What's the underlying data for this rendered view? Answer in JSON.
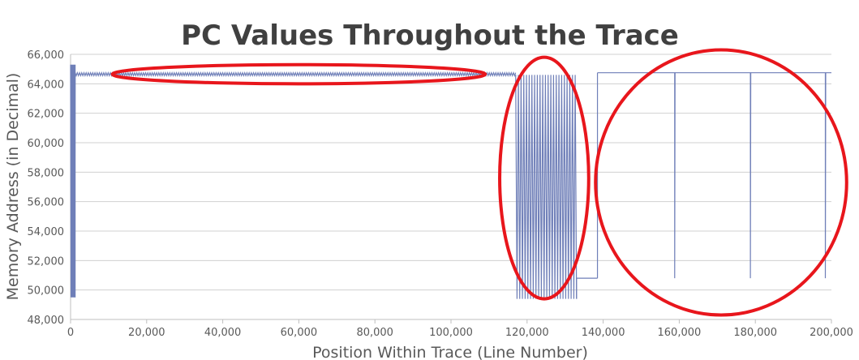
{
  "chart_data": {
    "type": "line",
    "title": "PC Values Throughout the Trace",
    "xlabel": "Position Within Trace (Line Number)",
    "ylabel": "Memory Address (in Decimal)",
    "xlim": [
      0,
      200000
    ],
    "ylim": [
      48000,
      66000
    ],
    "x_ticks": [
      0,
      20000,
      40000,
      60000,
      80000,
      100000,
      120000,
      140000,
      160000,
      180000,
      200000
    ],
    "x_tick_labels": [
      "0",
      "20,000",
      "40,000",
      "60,000",
      "80,000",
      "100,000",
      "120,000",
      "140,000",
      "160,000",
      "180,000",
      "200,000"
    ],
    "y_ticks": [
      48000,
      50000,
      52000,
      54000,
      56000,
      58000,
      60000,
      62000,
      64000,
      66000
    ],
    "y_tick_labels": [
      "48,000",
      "50,000",
      "52,000",
      "54,000",
      "56,000",
      "58,000",
      "60,000",
      "62,000",
      "64,000",
      "66,000"
    ],
    "grid": "horizontal",
    "series": [
      {
        "color": "#6f7fb8",
        "regions": [
          {
            "x_range": [
              0,
              1200
            ],
            "pattern": "oscillation",
            "low": 49500,
            "high": 65300,
            "count": 10
          },
          {
            "x_range": [
              1200,
              117000
            ],
            "pattern": "dense-band",
            "low": 64550,
            "high": 64750
          },
          {
            "x_range": [
              117000,
              133000
            ],
            "pattern": "oscillation",
            "low": 49400,
            "high": 64600,
            "count": 45
          },
          {
            "x_range": [
              133000,
              138500
            ],
            "pattern": "flat",
            "value": 50800
          },
          {
            "x_range": [
              138500,
              200000
            ],
            "pattern": "flat-with-spikes",
            "value": 64750,
            "spikes_x": [
              158800,
              178700,
              198400
            ],
            "spike_low": 50800
          }
        ]
      }
    ],
    "annotations": [
      {
        "type": "ellipse",
        "color": "#e8161c",
        "center": [
          60000,
          64650
        ],
        "radius_x": 49000,
        "radius_y": 650
      },
      {
        "type": "ellipse",
        "color": "#e8161c",
        "center": [
          124500,
          57600
        ],
        "radius_x": 11700,
        "radius_y": 8200
      },
      {
        "type": "ellipse",
        "color": "#e8161c",
        "center": [
          171000,
          57300
        ],
        "radius_x": 33000,
        "radius_y": 9000
      }
    ]
  },
  "colors": {
    "line": "#6f7fb8",
    "annotation": "#e8161c",
    "grid": "#d0d0d0",
    "axis": "#bfbfbf",
    "text": "#595959",
    "title": "#404040"
  }
}
